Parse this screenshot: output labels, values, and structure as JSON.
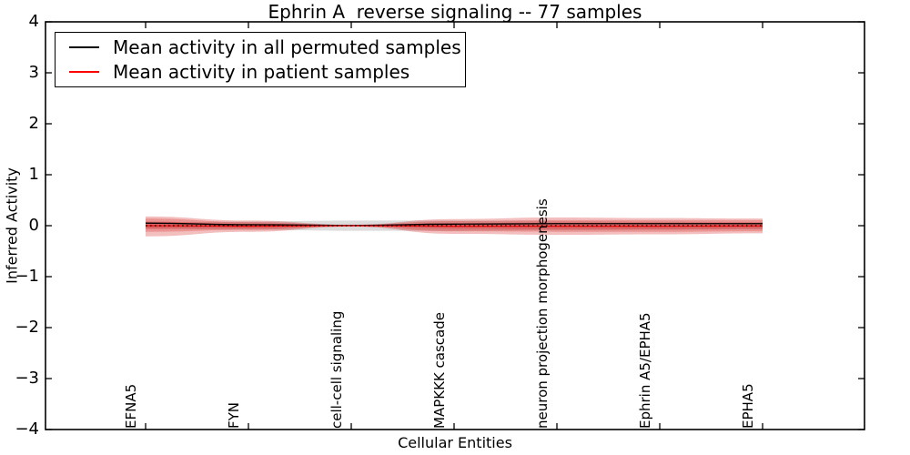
{
  "chart_data": {
    "type": "line",
    "title": "Ephrin A  reverse signaling -- 77 samples",
    "xlabel": "Cellular Entities",
    "ylabel": "Inferred Activity",
    "ylim": [
      -4,
      4
    ],
    "grid": false,
    "ytick_values": [
      4,
      3,
      2,
      1,
      0,
      -1,
      -2,
      -3,
      -4
    ],
    "ytick_labels": [
      "4",
      "3",
      "2",
      "1",
      "0",
      "−1",
      "−2",
      "−3",
      "−4"
    ],
    "categories": [
      "EFNA5",
      "FYN",
      "cell-cell signaling",
      "MAPKKK cascade",
      "neuron projection morphogenesis",
      "Ephrin A5/EPHA5",
      "EPHA5"
    ],
    "series": [
      {
        "name": "Mean activity in all permuted samples",
        "color": "#000000",
        "style": "solid",
        "values": [
          0.05,
          0.02,
          0.005,
          0.03,
          0.04,
          0.04,
          0.04
        ]
      },
      {
        "name": "Mean activity in patient samples",
        "color": "#ff0000",
        "style": "solid",
        "values": [
          0.0,
          -0.01,
          0.0,
          -0.01,
          -0.01,
          -0.01,
          -0.005
        ]
      },
      {
        "name": "zero-reference",
        "color": "#000000",
        "style": "dotted",
        "values": [
          0,
          0,
          0,
          0,
          0,
          0,
          0
        ]
      }
    ],
    "bands": [
      {
        "name": "permuted-samples-spread",
        "color": "rgba(130,130,130,0.28)",
        "upper": [
          0.06,
          0.08,
          0.1,
          0.1,
          0.09,
          0.08,
          0.07
        ],
        "lower": [
          -0.06,
          -0.08,
          -0.1,
          -0.1,
          -0.09,
          -0.08,
          -0.07
        ]
      },
      {
        "name": "patient-spread-outer",
        "color": "rgba(215,40,40,0.30)",
        "upper": [
          0.18,
          0.1,
          0.02,
          0.13,
          0.16,
          0.15,
          0.14
        ],
        "lower": [
          -0.21,
          -0.12,
          -0.02,
          -0.16,
          -0.18,
          -0.17,
          -0.15
        ]
      },
      {
        "name": "patient-spread-mid",
        "color": "rgba(215,40,40,0.28)",
        "upper": [
          0.14,
          0.07,
          0.015,
          0.09,
          0.11,
          0.11,
          0.11
        ],
        "lower": [
          -0.12,
          -0.08,
          -0.015,
          -0.11,
          -0.12,
          -0.12,
          -0.11
        ]
      },
      {
        "name": "patient-spread-core",
        "color": "rgba(215,40,40,0.30)",
        "upper": [
          0.08,
          0.04,
          0.01,
          0.05,
          0.06,
          0.06,
          0.06
        ],
        "lower": [
          -0.06,
          -0.05,
          -0.01,
          -0.06,
          -0.07,
          -0.07,
          -0.06
        ]
      }
    ],
    "legend": {
      "position": "upper left",
      "entries": [
        {
          "label": "Mean activity in all permuted samples",
          "color": "#000000"
        },
        {
          "label": "Mean activity in patient samples",
          "color": "#ff0000"
        }
      ]
    }
  },
  "colors": {
    "axis": "#000000",
    "background": "#ffffff",
    "band_red": "#d72828",
    "line_red": "#ff0000",
    "line_black": "#000000"
  }
}
